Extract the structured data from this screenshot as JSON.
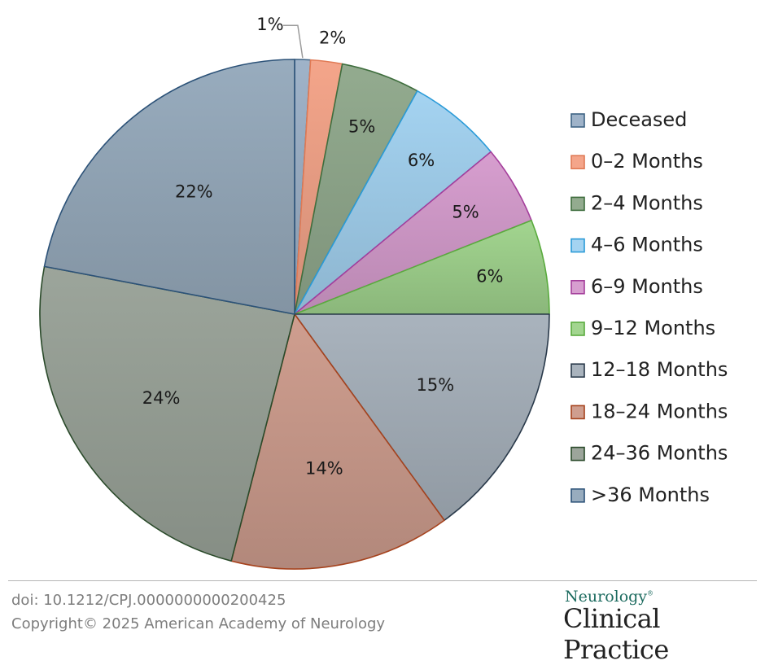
{
  "chart_data": {
    "type": "pie",
    "slices": [
      {
        "name": "Deceased",
        "value": 1,
        "label": "1%",
        "fill": "#9fb3c9",
        "stroke": "#3e6384"
      },
      {
        "name": "0–2 Months",
        "value": 2,
        "label": "2%",
        "fill": "#f4a58a",
        "stroke": "#e07a55"
      },
      {
        "name": "2–4 Months",
        "value": 5,
        "label": "5%",
        "fill": "#93ab8f",
        "stroke": "#3f6e3e"
      },
      {
        "name": "4–6 Months",
        "value": 6,
        "label": "6%",
        "fill": "#a4d3f1",
        "stroke": "#2b9bd8"
      },
      {
        "name": "6–9 Months",
        "value": 5,
        "label": "5%",
        "fill": "#d79ecf",
        "stroke": "#a43e9b"
      },
      {
        "name": "9–12 Months",
        "value": 6,
        "label": "6%",
        "fill": "#a2d58f",
        "stroke": "#5aab3e"
      },
      {
        "name": "12–18 Months",
        "value": 15,
        "label": "15%",
        "fill": "#a9b3bd",
        "stroke": "#29394a"
      },
      {
        "name": "18–24 Months",
        "value": 14,
        "label": "14%",
        "fill": "#cf9e8f",
        "stroke": "#a6431e"
      },
      {
        "name": "24–36 Months",
        "value": 24,
        "label": "24%",
        "fill": "#9ca59b",
        "stroke": "#2a4a2a"
      },
      {
        "name": ">36 Months",
        "value": 22,
        "label": "22%",
        "fill": "#98acbe",
        "stroke": "#2c5278"
      }
    ],
    "legend_placement": "right"
  },
  "footer": {
    "doi": "doi: 10.1212/CPJ.0000000000200425",
    "copyright": "Copyright© 2025 American Academy of Neurology",
    "brand_small": "Neurology",
    "brand_large": "Clinical Practice"
  }
}
